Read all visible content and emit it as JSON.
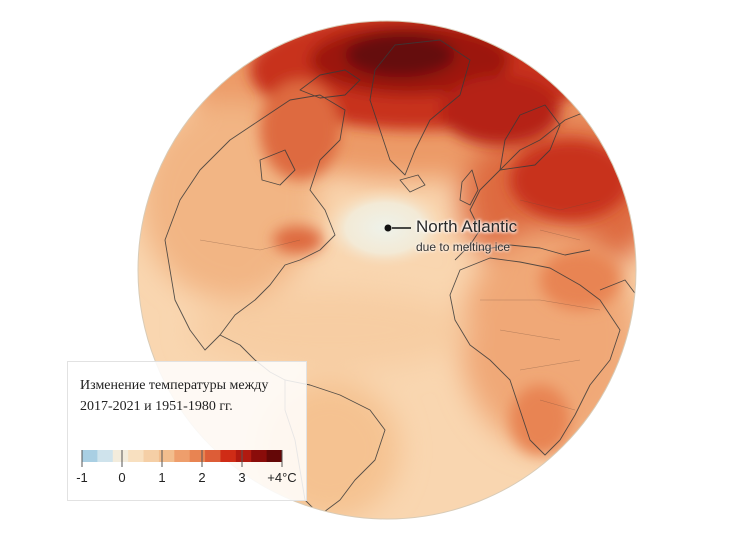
{
  "annotation": {
    "title": "North Atlantic",
    "subtitle": "due to melting ice"
  },
  "legend": {
    "title": "Изменение температуры между 2017-2021 и 1951-1980 гг.",
    "colors": [
      "#a9cfe3",
      "#cfe3ec",
      "#f3ecdc",
      "#f8e0c0",
      "#f5cfa6",
      "#f2bd8d",
      "#ee9e6c",
      "#e88452",
      "#dd5d37",
      "#cf2c16",
      "#b11a10",
      "#8a0c0a",
      "#640707"
    ],
    "ticks": [
      "-1",
      "0",
      "1",
      "2",
      "3",
      "+4°C"
    ]
  },
  "map_colors": {
    "base": "#f9d6b0",
    "warm_light": "#f5c291",
    "warm_mid": "#ec9a66",
    "warm_strong": "#de6a3f",
    "hot": "#c8321a",
    "very_hot": "#9c1410",
    "extreme": "#650909",
    "cold_spot": "#e8eee6",
    "coast": "#3a3a3a"
  }
}
